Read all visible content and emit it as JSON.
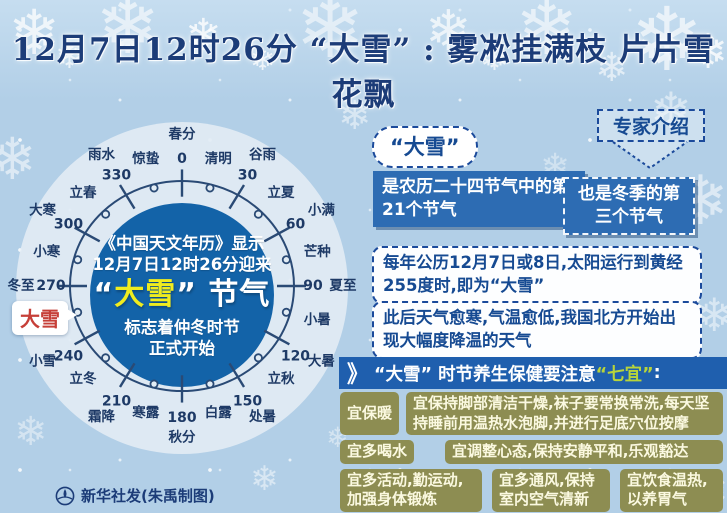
{
  "title": "12月7日12时26分 “大雪” : 雾凇挂满枝 片片雪花飘",
  "dial": {
    "center_lines": [
      "《中国天文年历》显示",
      "12月7日12时26分迎来"
    ],
    "term_quote_open": "“",
    "term_name": "大雪",
    "term_quote_close": "”",
    "term_suffix": " 节气",
    "footer_lines": [
      "标志着仲冬时节",
      "正式开始"
    ],
    "highlight_label": "大雪",
    "terms": [
      {
        "name": "春分",
        "deg": 0,
        "num": "0"
      },
      {
        "name": "清明",
        "deg": 15
      },
      {
        "name": "谷雨",
        "deg": 30,
        "num": "30"
      },
      {
        "name": "立夏",
        "deg": 45
      },
      {
        "name": "小满",
        "deg": 60,
        "num": "60"
      },
      {
        "name": "芒种",
        "deg": 75
      },
      {
        "name": "夏至",
        "deg": 90,
        "num": "90"
      },
      {
        "name": "小暑",
        "deg": 105
      },
      {
        "name": "大暑",
        "deg": 120,
        "num": "120"
      },
      {
        "name": "立秋",
        "deg": 135
      },
      {
        "name": "处暑",
        "deg": 150,
        "num": "150"
      },
      {
        "name": "白露",
        "deg": 165
      },
      {
        "name": "秋分",
        "deg": 180,
        "num": "180"
      },
      {
        "name": "寒露",
        "deg": 195
      },
      {
        "name": "霜降",
        "deg": 210,
        "num": "210"
      },
      {
        "name": "立冬",
        "deg": 225
      },
      {
        "name": "小雪",
        "deg": 240,
        "num": "240"
      },
      {
        "name": "大雪",
        "deg": 255,
        "highlight": true
      },
      {
        "name": "冬至",
        "deg": 270,
        "num": "270"
      },
      {
        "name": "小寒",
        "deg": 285
      },
      {
        "name": "大寒",
        "deg": 300,
        "num": "300"
      },
      {
        "name": "立春",
        "deg": 315
      },
      {
        "name": "雨水",
        "deg": 330,
        "num": "330"
      },
      {
        "name": "惊蛰",
        "deg": 345
      }
    ]
  },
  "expert_badge": {
    "label": "专家介绍"
  },
  "bubble": {
    "text": "“大雪”"
  },
  "blue_boxes": [
    {
      "text": "是农历二十四节气中的第21个节气"
    },
    {
      "text": "也是冬季的第三个节气"
    }
  ],
  "white_boxes": [
    {
      "text": "每年公历12月7日或8日,太阳运行到黄经255度时,即为“大雪”"
    },
    {
      "text": "此后天气愈寒,气温愈低,我国北方开始出现大幅度降温的天气"
    }
  ],
  "health": {
    "chevron": "》",
    "title_pre": "“大雪” 时节养生保健要注意 ",
    "title_highlight": "“七宜”",
    "title_post": " :",
    "tips_rows": [
      [
        {
          "text": "宜保暖"
        },
        {
          "text": "宜保持脚部清洁干燥,袜子要常换常洗,每天坚持睡前用温热水泡脚,并进行足底穴位按摩"
        }
      ],
      [
        {
          "text": "宜多喝水"
        },
        {
          "text": "宜调整心态,保持安静平和,乐观豁达"
        }
      ],
      [
        {
          "text": "宜多活动,勤运动,加强身体锻炼"
        },
        {
          "text": "宜多通风,保持室内空气清新"
        },
        {
          "text": "宜饮食温热,以养胃气"
        }
      ]
    ]
  },
  "footer": {
    "credit": "新华社发(朱禹制图)"
  },
  "colors": {
    "background": "#b2cfe7",
    "title_navy": "#1c3c78",
    "dial_inner_blue": "#1363a8",
    "term_yellow": "#f0ec1f",
    "highlight_red": "#c63f38",
    "info_blue": "#2d6cb3",
    "bar_blue": "#1f5fae",
    "tip_olive": "#8d8d52",
    "qiyi_green": "#b8d43a"
  }
}
